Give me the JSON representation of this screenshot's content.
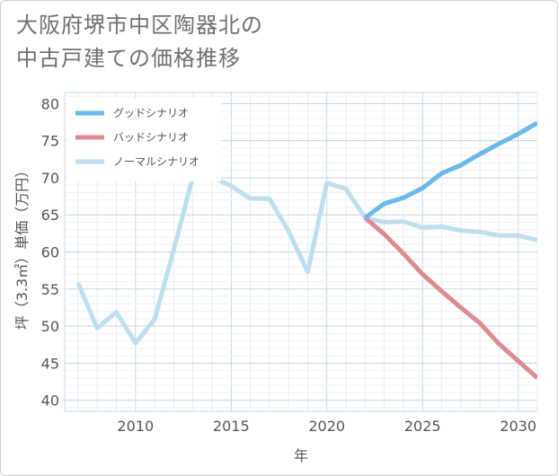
{
  "title": {
    "line1": "大阪府堺市中区陶器北の",
    "line2": "中古戸建ての価格推移"
  },
  "chart_data": {
    "type": "line",
    "title": "大阪府堺市中区陶器北の中古戸建ての価格推移",
    "xlabel": "年",
    "ylabel": "坪（3.3㎡）単価（万円）",
    "xlim": [
      2006.3,
      2031
    ],
    "ylim": [
      38.5,
      81.5
    ],
    "xticks": [
      2010,
      2015,
      2020,
      2025,
      2030
    ],
    "yticks": [
      40,
      45,
      50,
      55,
      60,
      65,
      70,
      75,
      80
    ],
    "grid": true,
    "legend_position": "top-left",
    "series": [
      {
        "name": "グッドシナリオ",
        "color": "#6bb8ea",
        "x": [
          2022,
          2023,
          2024,
          2025,
          2026,
          2027,
          2028,
          2029,
          2030,
          2031
        ],
        "y": [
          64.6,
          66.5,
          67.3,
          68.6,
          70.6,
          71.7,
          73.2,
          74.6,
          75.9,
          77.4
        ]
      },
      {
        "name": "バッドシナリオ",
        "color": "#de8a93",
        "x": [
          2022,
          2023,
          2024,
          2025,
          2026,
          2027,
          2028,
          2029,
          2030,
          2031
        ],
        "y": [
          64.6,
          62.4,
          59.8,
          57.0,
          54.7,
          52.5,
          50.4,
          47.6,
          45.3,
          43.0
        ]
      },
      {
        "name": "ノーマルシナリオ",
        "color": "#c0dfee",
        "x": [
          2007,
          2008,
          2009,
          2010,
          2011,
          2012,
          2013,
          2014,
          2015,
          2016,
          2017,
          2018,
          2019,
          2020,
          2021,
          2022,
          2023,
          2024,
          2025,
          2026,
          2027,
          2028,
          2029,
          2030,
          2031
        ],
        "y": [
          55.8,
          49.7,
          51.9,
          47.7,
          50.9,
          60.3,
          70.2,
          70.1,
          68.9,
          67.2,
          67.2,
          62.8,
          57.3,
          69.3,
          68.5,
          64.6,
          64.0,
          64.1,
          63.3,
          63.4,
          62.9,
          62.7,
          62.2,
          62.2,
          61.6
        ]
      }
    ]
  }
}
